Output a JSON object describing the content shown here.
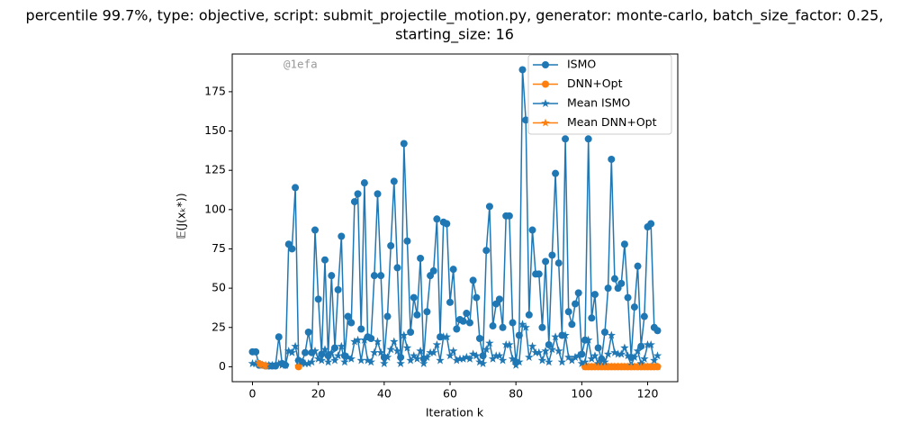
{
  "chart_data": {
    "type": "line",
    "title": [
      "percentile 99.7%, type: objective, script: submit_projectile_motion.py, generator: monte-carlo, batch_size_factor: 0.25,",
      "starting_size: 16"
    ],
    "xlabel": "Iteration k",
    "ylabel": "𝔼(J(xₖ*))",
    "annotation": "@1efa",
    "x": [
      0,
      1,
      2,
      3,
      4,
      5,
      6,
      7,
      8,
      9,
      10,
      11,
      12,
      13,
      14,
      15,
      16,
      17,
      18,
      19,
      20,
      21,
      22,
      23,
      24,
      25,
      26,
      27,
      28,
      29,
      30,
      31,
      32,
      33,
      34,
      35,
      36,
      37,
      38,
      39,
      40,
      41,
      42,
      43,
      44,
      45,
      46,
      47,
      48,
      49,
      50,
      51,
      52,
      53,
      54,
      55,
      56,
      57,
      58,
      59,
      60,
      61,
      62,
      63,
      64,
      65,
      66,
      67,
      68,
      69,
      70,
      71,
      72,
      73,
      74,
      75,
      76,
      77,
      78,
      79,
      80,
      81,
      82,
      83,
      84,
      85,
      86,
      87,
      88,
      89,
      90,
      91,
      92,
      93,
      94,
      95,
      96,
      97,
      98,
      99,
      100,
      101,
      102,
      103,
      104,
      105,
      106,
      107,
      108,
      109,
      110,
      111,
      112,
      113,
      114,
      115,
      116,
      117,
      118,
      119,
      120,
      121,
      122,
      123
    ],
    "series": [
      {
        "name": "ISMO",
        "color": "#1f77b4",
        "marker": "circle",
        "values": [
          9.5,
          9.5,
          1,
          1,
          0.5,
          0.5,
          0.5,
          0.5,
          19,
          2,
          1,
          78,
          75,
          114,
          4,
          3,
          9,
          22,
          9,
          87,
          43,
          8,
          68,
          7,
          58,
          12,
          49,
          83,
          7,
          32,
          28,
          105,
          110,
          24,
          117,
          19,
          18,
          58,
          110,
          58,
          6,
          32,
          77,
          118,
          63,
          6,
          142,
          80,
          22,
          44,
          33,
          69,
          5,
          35,
          58,
          61,
          94,
          19,
          92,
          91,
          41,
          62,
          24,
          30,
          29,
          34,
          28,
          55,
          44,
          18,
          7,
          74,
          102,
          26,
          40,
          43,
          25,
          96,
          96,
          28,
          3,
          20,
          189,
          157,
          33,
          87,
          59,
          59,
          25,
          67,
          14,
          71,
          123,
          66,
          20,
          145,
          35,
          27,
          40,
          47,
          8,
          17,
          145,
          31,
          46,
          12,
          5,
          22,
          50,
          132,
          56,
          50,
          53,
          78,
          44,
          6,
          38,
          64,
          13,
          32,
          89,
          91,
          25,
          23
        ]
      },
      {
        "name": "DNN+Opt",
        "color": "#ff7f0e",
        "marker": "circle",
        "values": [
          null,
          null,
          2,
          1,
          0.5,
          null,
          null,
          null,
          null,
          null,
          null,
          null,
          null,
          null,
          0,
          null,
          null,
          null,
          null,
          null,
          null,
          null,
          null,
          null,
          null,
          null,
          null,
          null,
          null,
          null,
          null,
          null,
          null,
          null,
          null,
          null,
          null,
          null,
          null,
          null,
          null,
          null,
          null,
          null,
          null,
          null,
          null,
          null,
          null,
          null,
          null,
          null,
          null,
          null,
          null,
          null,
          null,
          null,
          null,
          null,
          null,
          null,
          null,
          null,
          null,
          null,
          null,
          null,
          null,
          null,
          null,
          null,
          null,
          null,
          null,
          null,
          null,
          null,
          null,
          null,
          null,
          null,
          null,
          null,
          null,
          null,
          null,
          null,
          null,
          null,
          null,
          null,
          null,
          null,
          null,
          null,
          null,
          null,
          null,
          null,
          null,
          0,
          0,
          0,
          0,
          0,
          0,
          0,
          0,
          0,
          0,
          0,
          0,
          0,
          0,
          0,
          0,
          0,
          0,
          0,
          0,
          0,
          0,
          0
        ]
      },
      {
        "name": "Mean ISMO",
        "color": "#1f77b4",
        "marker": "star",
        "values": [
          2,
          2,
          2,
          1,
          1,
          1,
          1,
          1,
          2,
          1,
          1,
          10,
          9,
          13,
          3,
          2,
          2,
          2,
          3,
          10,
          5,
          4,
          11,
          3,
          9,
          4,
          7,
          13,
          3,
          6,
          5,
          16,
          17,
          4,
          17,
          4,
          3,
          9,
          16,
          9,
          2,
          6,
          11,
          16,
          10,
          2,
          20,
          12,
          4,
          7,
          5,
          10,
          2,
          6,
          9,
          9,
          14,
          4,
          19,
          19,
          7,
          10,
          4,
          5,
          5,
          6,
          5,
          8,
          7,
          3,
          2,
          11,
          15,
          5,
          7,
          7,
          4,
          14,
          14,
          5,
          1,
          3,
          27,
          25,
          6,
          13,
          9,
          9,
          4,
          10,
          3,
          11,
          19,
          10,
          3,
          20,
          6,
          4,
          6,
          7,
          2,
          3,
          17,
          5,
          7,
          2,
          1,
          3,
          8,
          20,
          9,
          8,
          8,
          12,
          7,
          1,
          6,
          10,
          2,
          5,
          14,
          14,
          4,
          7
        ]
      },
      {
        "name": "Mean DNN+Opt",
        "color": "#ff7f0e",
        "marker": "star",
        "values": [
          null,
          null,
          2,
          1.2,
          0.9,
          null,
          null,
          null,
          null,
          null,
          null,
          null,
          null,
          null,
          0.5,
          null,
          null,
          null,
          null,
          null,
          null,
          null,
          null,
          null,
          null,
          null,
          null,
          null,
          null,
          null,
          null,
          null,
          null,
          null,
          null,
          null,
          null,
          null,
          null,
          null,
          null,
          null,
          null,
          null,
          null,
          null,
          null,
          null,
          null,
          null,
          null,
          null,
          null,
          null,
          null,
          null,
          null,
          null,
          null,
          null,
          null,
          null,
          null,
          null,
          null,
          null,
          null,
          null,
          null,
          null,
          null,
          null,
          null,
          null,
          null,
          null,
          null,
          null,
          null,
          null,
          null,
          null,
          null,
          null,
          null,
          null,
          null,
          null,
          null,
          null,
          null,
          null,
          null,
          null,
          null,
          null,
          null,
          null,
          null,
          null,
          null,
          0,
          0,
          0,
          0,
          0,
          0,
          0,
          0,
          0,
          0,
          0,
          0,
          0,
          0,
          0,
          0,
          0,
          0,
          0,
          0,
          0,
          0,
          0
        ]
      }
    ],
    "xlim": [
      -6.15,
      129.15
    ],
    "ylim": [
      -9.5,
      199
    ],
    "xticks": [
      0,
      20,
      40,
      60,
      80,
      100,
      120
    ],
    "yticks": [
      0,
      25,
      50,
      75,
      100,
      125,
      150,
      175
    ],
    "legend": "upper right"
  }
}
